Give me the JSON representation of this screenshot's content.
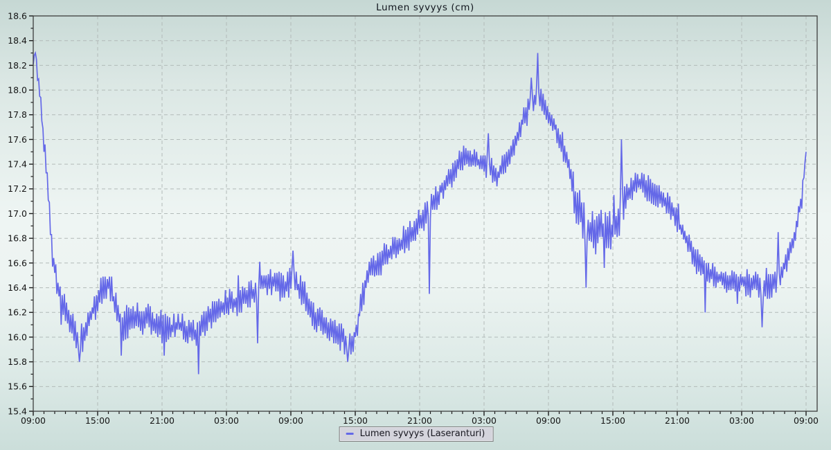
{
  "chart_data": {
    "type": "line",
    "title": "Lumen syvyys (cm)",
    "legend_position": "bottom-center",
    "x_axis": {
      "tick_labels": [
        "09:00",
        "15:00",
        "21:00",
        "03:00",
        "09:00",
        "15:00",
        "21:00",
        "03:00",
        "09:00",
        "15:00",
        "21:00",
        "03:00",
        "09:00"
      ],
      "hours_span": 72,
      "major_tick_hours": 6,
      "minor_tick_hours": 1,
      "grid": "dashed"
    },
    "y_axis": {
      "min": 15.4,
      "max": 18.6,
      "tick_step": 0.2,
      "minor_tick_step": 0.1,
      "tick_labels": [
        "18.6",
        "18.4",
        "18.2",
        "18.0",
        "17.8",
        "17.6",
        "17.4",
        "17.2",
        "17.0",
        "16.8",
        "16.6",
        "16.4",
        "16.2",
        "16.0",
        "15.8",
        "15.6",
        "15.4"
      ],
      "grid": "dashed"
    },
    "series": [
      {
        "name": "Lumen syvyys (Laseranturi)",
        "color": "#6468e8",
        "sample_minutes": 6,
        "noise_seed": 987654321,
        "value_quantize": 0.01,
        "trend_keyframes": [
          [
            0,
            18.22
          ],
          [
            0.15,
            18.25
          ],
          [
            0.4,
            18.1
          ],
          [
            0.7,
            17.9
          ],
          [
            0.95,
            17.6
          ],
          [
            1.1,
            17.5
          ],
          [
            1.4,
            17.15
          ],
          [
            1.8,
            16.65
          ],
          [
            2.3,
            16.4
          ],
          [
            2.8,
            16.25
          ],
          [
            3.4,
            16.15
          ],
          [
            4.2,
            15.98
          ],
          [
            4.7,
            16.0
          ],
          [
            5.2,
            16.15
          ],
          [
            6.0,
            16.3
          ],
          [
            6.7,
            16.45
          ],
          [
            7.2,
            16.4
          ],
          [
            7.8,
            16.2
          ],
          [
            8.4,
            16.1
          ],
          [
            9.2,
            16.15
          ],
          [
            10.5,
            16.15
          ],
          [
            11.5,
            16.1
          ],
          [
            12.5,
            16.05
          ],
          [
            13.5,
            16.1
          ],
          [
            14.5,
            16.05
          ],
          [
            15.3,
            16.0
          ],
          [
            16.2,
            16.15
          ],
          [
            17.2,
            16.2
          ],
          [
            18.2,
            16.28
          ],
          [
            19.5,
            16.3
          ],
          [
            20.5,
            16.35
          ],
          [
            21.3,
            16.45
          ],
          [
            22.3,
            16.45
          ],
          [
            23.2,
            16.4
          ],
          [
            24.0,
            16.45
          ],
          [
            25.0,
            16.38
          ],
          [
            26.0,
            16.2
          ],
          [
            27.0,
            16.1
          ],
          [
            28.2,
            16.05
          ],
          [
            29.2,
            15.95
          ],
          [
            29.9,
            15.98
          ],
          [
            30.5,
            16.25
          ],
          [
            31.2,
            16.5
          ],
          [
            32.2,
            16.6
          ],
          [
            33.2,
            16.68
          ],
          [
            34.2,
            16.75
          ],
          [
            35.2,
            16.85
          ],
          [
            36.2,
            16.95
          ],
          [
            37.2,
            17.08
          ],
          [
            38.2,
            17.22
          ],
          [
            39.2,
            17.35
          ],
          [
            40.2,
            17.45
          ],
          [
            41.2,
            17.42
          ],
          [
            42.2,
            17.42
          ],
          [
            43.2,
            17.3
          ],
          [
            44.2,
            17.42
          ],
          [
            45.0,
            17.6
          ],
          [
            45.8,
            17.8
          ],
          [
            46.5,
            17.9
          ],
          [
            47.1,
            17.95
          ],
          [
            47.8,
            17.85
          ],
          [
            48.4,
            17.75
          ],
          [
            49.1,
            17.6
          ],
          [
            49.8,
            17.42
          ],
          [
            50.4,
            17.15
          ],
          [
            51.2,
            16.95
          ],
          [
            52.2,
            16.85
          ],
          [
            53.5,
            16.85
          ],
          [
            54.4,
            16.9
          ],
          [
            55.2,
            17.15
          ],
          [
            56.2,
            17.25
          ],
          [
            57.2,
            17.2
          ],
          [
            58.2,
            17.15
          ],
          [
            59.2,
            17.08
          ],
          [
            60.2,
            16.9
          ],
          [
            61.2,
            16.72
          ],
          [
            62.2,
            16.55
          ],
          [
            63.2,
            16.5
          ],
          [
            64.5,
            16.45
          ],
          [
            66.0,
            16.45
          ],
          [
            67.2,
            16.42
          ],
          [
            68.2,
            16.4
          ],
          [
            69.2,
            16.45
          ],
          [
            70.2,
            16.6
          ],
          [
            71.0,
            16.85
          ],
          [
            71.5,
            17.1
          ],
          [
            71.8,
            17.3
          ],
          [
            72.05,
            17.5
          ]
        ],
        "noise_amplitude_keyframes": [
          [
            0,
            0.05
          ],
          [
            1.5,
            0.08
          ],
          [
            3,
            0.13
          ],
          [
            8,
            0.14
          ],
          [
            16,
            0.12
          ],
          [
            24,
            0.12
          ],
          [
            28,
            0.13
          ],
          [
            30.5,
            0.12
          ],
          [
            36,
            0.12
          ],
          [
            44,
            0.1
          ],
          [
            47,
            0.09
          ],
          [
            50,
            0.12
          ],
          [
            50.8,
            0.19
          ],
          [
            54.3,
            0.19
          ],
          [
            55.5,
            0.12
          ],
          [
            60,
            0.11
          ],
          [
            66,
            0.12
          ],
          [
            69.5,
            0.11
          ],
          [
            71,
            0.08
          ],
          [
            72.05,
            0.06
          ]
        ],
        "extreme_points": [
          [
            0.2,
            18.3
          ],
          [
            4.3,
            15.8
          ],
          [
            8.2,
            15.85
          ],
          [
            12.2,
            15.85
          ],
          [
            15.35,
            15.7
          ],
          [
            20.9,
            15.95
          ],
          [
            24.2,
            16.7
          ],
          [
            29.3,
            15.8
          ],
          [
            36.9,
            16.35
          ],
          [
            42.4,
            17.65
          ],
          [
            46.4,
            18.1
          ],
          [
            47.0,
            18.3
          ],
          [
            51.5,
            16.4
          ],
          [
            54.8,
            17.6
          ],
          [
            62.6,
            16.2
          ],
          [
            67.9,
            16.08
          ],
          [
            69.4,
            16.85
          ],
          [
            72.0,
            17.5
          ]
        ]
      }
    ]
  },
  "colors": {
    "line": "#6468e8",
    "grid": "#b2bab8",
    "frame": "#3c3c3c",
    "tick": "#1a1a1a",
    "tick_text": "#141414",
    "title_text": "#10141c",
    "legend_bg": "#d4d4dc",
    "legend_border": "#7f7f7f",
    "legend_text": "#16161e"
  }
}
